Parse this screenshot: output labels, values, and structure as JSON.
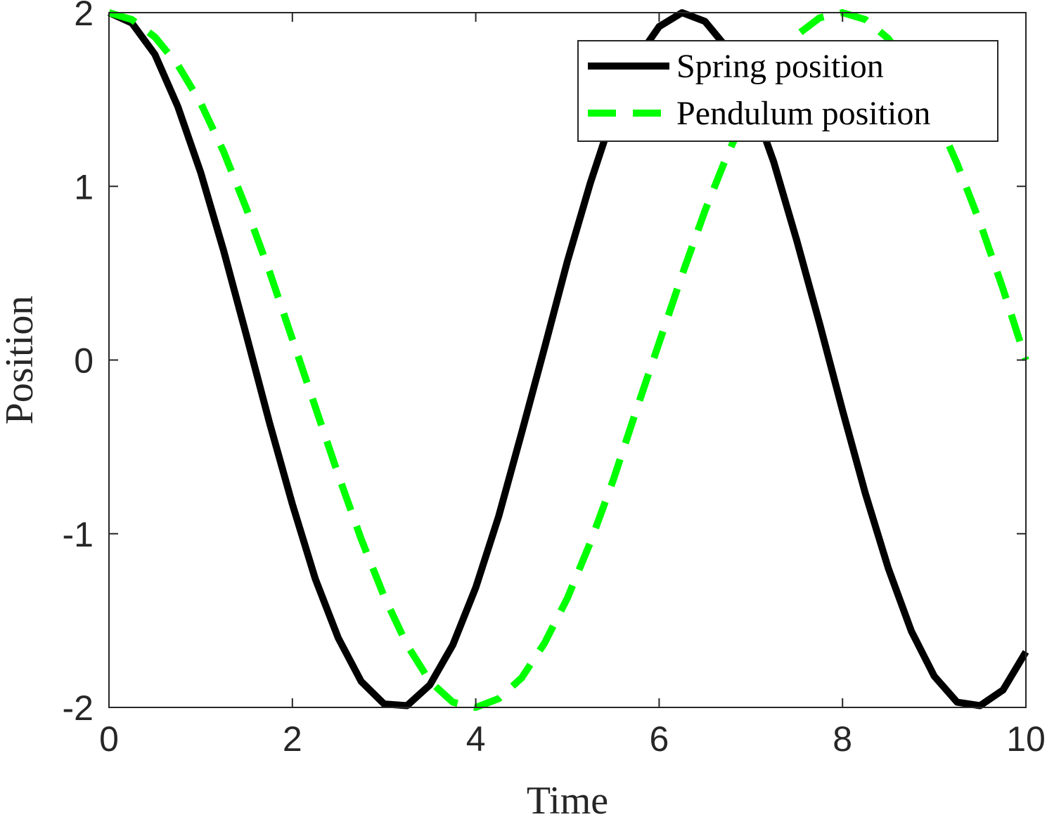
{
  "chart_data": {
    "type": "line",
    "xlabel": "Time",
    "ylabel": "Position",
    "xlim": [
      0,
      10
    ],
    "ylim": [
      -2,
      2
    ],
    "x_ticks": [
      "0",
      "2",
      "4",
      "6",
      "8",
      "10"
    ],
    "y_ticks": [
      "-2",
      "-1",
      "0",
      "1",
      "2"
    ],
    "grid": false,
    "legend_position": "top-right",
    "series": [
      {
        "name": "Spring position",
        "color": "#000000",
        "style": "solid",
        "x": [
          0,
          0.25,
          0.5,
          0.75,
          1,
          1.25,
          1.5,
          1.75,
          2,
          2.25,
          2.5,
          2.75,
          3,
          3.25,
          3.5,
          3.75,
          4,
          4.25,
          4.5,
          4.75,
          5,
          5.25,
          5.5,
          5.75,
          6,
          6.25,
          6.5,
          6.75,
          7,
          7.25,
          7.5,
          7.75,
          8,
          8.25,
          8.5,
          8.75,
          9,
          9.25,
          9.5,
          9.75,
          10
        ],
        "values": [
          2,
          1.94,
          1.76,
          1.46,
          1.08,
          0.63,
          0.14,
          -0.36,
          -0.83,
          -1.26,
          -1.6,
          -1.85,
          -1.98,
          -1.99,
          -1.87,
          -1.64,
          -1.31,
          -0.9,
          -0.42,
          0.07,
          0.57,
          1.02,
          1.42,
          1.73,
          1.92,
          2,
          1.95,
          1.79,
          1.51,
          1.14,
          0.69,
          0.21,
          -0.29,
          -0.77,
          -1.2,
          -1.56,
          -1.82,
          -1.97,
          -1.99,
          -1.9,
          -1.68
        ]
      },
      {
        "name": "Pendulum position",
        "color": "#00ff00",
        "style": "dashed",
        "x": [
          0,
          0.25,
          0.5,
          0.75,
          1,
          1.25,
          1.5,
          1.75,
          2,
          2.25,
          2.5,
          2.75,
          3,
          3.25,
          3.5,
          3.75,
          4,
          4.25,
          4.5,
          4.75,
          5,
          5.25,
          5.5,
          5.75,
          6,
          6.25,
          6.5,
          6.75,
          7,
          7.25,
          7.5,
          7.75,
          8,
          8.25,
          8.5,
          8.75,
          9,
          9.25,
          9.5,
          9.75,
          10
        ],
        "values": [
          2,
          1.96,
          1.86,
          1.7,
          1.48,
          1.2,
          0.87,
          0.51,
          0.12,
          -0.27,
          -0.66,
          -1.03,
          -1.36,
          -1.64,
          -1.85,
          -1.97,
          -2,
          -1.95,
          -1.83,
          -1.63,
          -1.37,
          -1.05,
          -0.69,
          -0.29,
          0.1,
          0.49,
          0.86,
          1.19,
          1.47,
          1.7,
          1.87,
          1.97,
          2,
          1.96,
          1.85,
          1.67,
          1.43,
          1.13,
          0.79,
          0.41,
          0.0
        ]
      }
    ]
  }
}
